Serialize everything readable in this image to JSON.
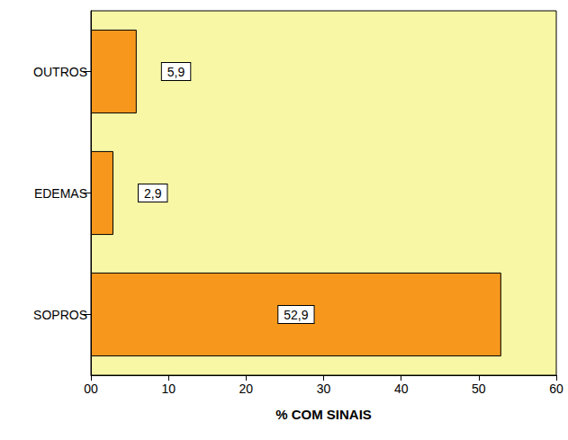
{
  "chart_data": {
    "type": "bar",
    "orientation": "horizontal",
    "categories": [
      "SOPROS",
      "EDEMAS",
      "OUTROS"
    ],
    "values": [
      52.9,
      2.9,
      5.9
    ],
    "value_labels": [
      "52,9",
      "2,9",
      "5,9"
    ],
    "color": "#f7981d",
    "xlabel": "% COM SINAIS",
    "xlim": [
      0,
      60
    ],
    "xticks": [
      {
        "value": 0,
        "label": "00"
      },
      10,
      20,
      30,
      40,
      50,
      60
    ],
    "grid": false,
    "data_labels": true
  }
}
